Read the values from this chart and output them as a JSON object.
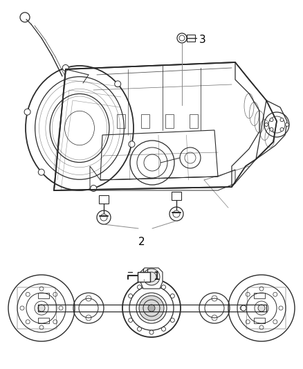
{
  "background_color": "#ffffff",
  "figsize": [
    4.38,
    5.33
  ],
  "dpi": 100,
  "line_color": "#2a2a2a",
  "annotation_color": "#000000",
  "gray_light": "#c8c8c8",
  "gray_mid": "#888888",
  "gray_dark": "#444444",
  "label_1": "1",
  "label_2": "2",
  "label_3": "3",
  "label_fontsize": 11
}
